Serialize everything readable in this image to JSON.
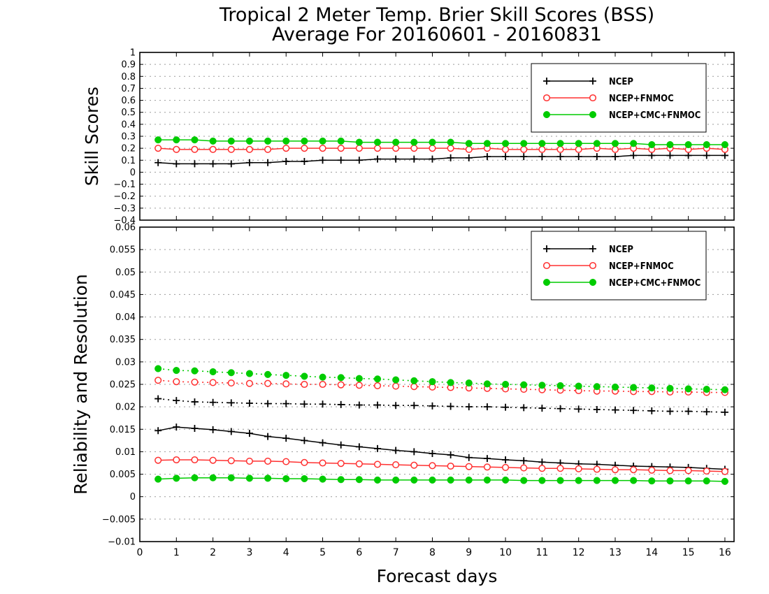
{
  "title_line1": "Tropical 2 Meter Temp. Brier Skill Scores (BSS)",
  "title_line2": "Average For 20160601 - 20160831",
  "xlabel": "Forecast days",
  "colors": {
    "NCEP": "#000000",
    "NCEP+FNMOC": "#ff3030",
    "NCEP+CMC+FNMOC": "#00cc00"
  },
  "chart_data": [
    {
      "type": "line",
      "panel": "top",
      "ylabel": "Skill Scores",
      "xlim": [
        0,
        16.25
      ],
      "ylim": [
        -0.4,
        1
      ],
      "x_ticks": [
        "0",
        "1",
        "2",
        "3",
        "4",
        "5",
        "6",
        "7",
        "8",
        "9",
        "10",
        "11",
        "12",
        "13",
        "14",
        "15",
        "16"
      ],
      "y_ticks": [
        "-0.4",
        "-0.3",
        "-0.2",
        "-0.1",
        "0",
        "0.1",
        "0.2",
        "0.3",
        "0.4",
        "0.5",
        "0.6",
        "0.7",
        "0.8",
        "0.9",
        "1"
      ],
      "grid": true,
      "legend": {
        "placement": "top-right",
        "entries": [
          "NCEP",
          "NCEP+FNMOC",
          "NCEP+CMC+FNMOC"
        ]
      },
      "x": [
        0.5,
        1,
        1.5,
        2,
        2.5,
        3,
        3.5,
        4,
        4.5,
        5,
        5.5,
        6,
        6.5,
        7,
        7.5,
        8,
        8.5,
        9,
        9.5,
        10,
        10.5,
        11,
        11.5,
        12,
        12.5,
        13,
        13.5,
        14,
        14.5,
        15,
        15.5,
        16
      ],
      "series": [
        {
          "name": "NCEP",
          "marker": "plus",
          "line": "solid",
          "values": [
            0.08,
            0.07,
            0.07,
            0.07,
            0.07,
            0.08,
            0.08,
            0.09,
            0.09,
            0.1,
            0.1,
            0.1,
            0.11,
            0.11,
            0.11,
            0.11,
            0.12,
            0.12,
            0.13,
            0.13,
            0.13,
            0.13,
            0.13,
            0.13,
            0.13,
            0.13,
            0.14,
            0.14,
            0.14,
            0.14,
            0.14,
            0.14
          ]
        },
        {
          "name": "NCEP+FNMOC",
          "marker": "open-circle",
          "line": "solid",
          "values": [
            0.2,
            0.19,
            0.19,
            0.19,
            0.19,
            0.19,
            0.19,
            0.2,
            0.2,
            0.2,
            0.2,
            0.2,
            0.2,
            0.2,
            0.2,
            0.2,
            0.2,
            0.19,
            0.2,
            0.19,
            0.19,
            0.19,
            0.19,
            0.19,
            0.2,
            0.19,
            0.2,
            0.19,
            0.2,
            0.19,
            0.2,
            0.19
          ]
        },
        {
          "name": "NCEP+CMC+FNMOC",
          "marker": "filled-circle",
          "line": "solid",
          "values": [
            0.27,
            0.27,
            0.27,
            0.26,
            0.26,
            0.26,
            0.26,
            0.26,
            0.26,
            0.26,
            0.26,
            0.25,
            0.25,
            0.25,
            0.25,
            0.25,
            0.25,
            0.24,
            0.24,
            0.24,
            0.24,
            0.24,
            0.24,
            0.24,
            0.24,
            0.24,
            0.24,
            0.23,
            0.23,
            0.23,
            0.23,
            0.23
          ]
        }
      ]
    },
    {
      "type": "line",
      "panel": "bottom",
      "ylabel": "Reliability and Resolution",
      "xlim": [
        0,
        16.25
      ],
      "ylim": [
        -0.01,
        0.06
      ],
      "x_ticks": [
        "0",
        "1",
        "2",
        "3",
        "4",
        "5",
        "6",
        "7",
        "8",
        "9",
        "10",
        "11",
        "12",
        "13",
        "14",
        "15",
        "16"
      ],
      "y_ticks": [
        "-0.01",
        "-0.005",
        "0",
        "0.005",
        "0.01",
        "0.015",
        "0.02",
        "0.025",
        "0.03",
        "0.035",
        "0.04",
        "0.045",
        "0.05",
        "0.055",
        "0.06"
      ],
      "grid": true,
      "legend": {
        "placement": "top-right",
        "entries": [
          "NCEP",
          "NCEP+FNMOC",
          "NCEP+CMC+FNMOC"
        ]
      },
      "x": [
        0.5,
        1,
        1.5,
        2,
        2.5,
        3,
        3.5,
        4,
        4.5,
        5,
        5.5,
        6,
        6.5,
        7,
        7.5,
        8,
        8.5,
        9,
        9.5,
        10,
        10.5,
        11,
        11.5,
        12,
        12.5,
        13,
        13.5,
        14,
        14.5,
        15,
        15.5,
        16
      ],
      "series": [
        {
          "name": "NCEP",
          "marker": "plus",
          "line": "solid",
          "values": [
            0.0147,
            0.0155,
            0.0152,
            0.0149,
            0.0145,
            0.0141,
            0.0134,
            0.013,
            0.0125,
            0.012,
            0.0115,
            0.0111,
            0.0107,
            0.0103,
            0.01,
            0.0096,
            0.0093,
            0.0087,
            0.0085,
            0.0082,
            0.008,
            0.0077,
            0.0075,
            0.0073,
            0.0072,
            0.007,
            0.0068,
            0.0067,
            0.0066,
            0.0065,
            0.0063,
            0.0061
          ]
        },
        {
          "name": "NCEP+FNMOC",
          "marker": "open-circle",
          "line": "solid",
          "values": [
            0.0081,
            0.0082,
            0.0082,
            0.0081,
            0.008,
            0.0079,
            0.0079,
            0.0078,
            0.0076,
            0.0075,
            0.0074,
            0.0073,
            0.0072,
            0.0071,
            0.007,
            0.0069,
            0.0068,
            0.0067,
            0.0066,
            0.0065,
            0.0064,
            0.0063,
            0.0063,
            0.0062,
            0.0061,
            0.006,
            0.006,
            0.0059,
            0.0058,
            0.0058,
            0.0057,
            0.0056
          ]
        },
        {
          "name": "NCEP+CMC+FNMOC",
          "marker": "filled-circle",
          "line": "solid",
          "values": [
            0.0039,
            0.0041,
            0.0042,
            0.0042,
            0.0042,
            0.0041,
            0.0041,
            0.004,
            0.004,
            0.0039,
            0.0038,
            0.0038,
            0.0037,
            0.0037,
            0.0037,
            0.0037,
            0.0037,
            0.0037,
            0.0037,
            0.0037,
            0.0036,
            0.0036,
            0.0036,
            0.0036,
            0.0036,
            0.0036,
            0.0036,
            0.0035,
            0.0035,
            0.0035,
            0.0035,
            0.0034
          ]
        },
        {
          "name": "NCEP",
          "marker": "plus",
          "line": "dotted",
          "values": [
            0.0218,
            0.0214,
            0.0211,
            0.021,
            0.0209,
            0.0208,
            0.0207,
            0.0207,
            0.0206,
            0.0206,
            0.0205,
            0.0204,
            0.0204,
            0.0203,
            0.0203,
            0.0202,
            0.0201,
            0.02,
            0.02,
            0.0199,
            0.0198,
            0.0197,
            0.0196,
            0.0195,
            0.0194,
            0.0193,
            0.0192,
            0.0191,
            0.019,
            0.019,
            0.0189,
            0.0188
          ]
        },
        {
          "name": "NCEP+FNMOC",
          "marker": "open-circle",
          "line": "dotted",
          "values": [
            0.0259,
            0.0256,
            0.0255,
            0.0254,
            0.0253,
            0.0252,
            0.0252,
            0.0251,
            0.025,
            0.025,
            0.0249,
            0.0248,
            0.0247,
            0.0246,
            0.0245,
            0.0244,
            0.0243,
            0.0242,
            0.0241,
            0.024,
            0.0239,
            0.0238,
            0.0237,
            0.0236,
            0.0235,
            0.0235,
            0.0234,
            0.0234,
            0.0233,
            0.0233,
            0.0232,
            0.0232
          ]
        },
        {
          "name": "NCEP+CMC+FNMOC",
          "marker": "filled-circle",
          "line": "dotted",
          "values": [
            0.0285,
            0.0281,
            0.028,
            0.0278,
            0.0276,
            0.0274,
            0.0272,
            0.027,
            0.0268,
            0.0266,
            0.0265,
            0.0263,
            0.0262,
            0.026,
            0.0258,
            0.0256,
            0.0254,
            0.0253,
            0.0251,
            0.025,
            0.0249,
            0.0248,
            0.0247,
            0.0246,
            0.0245,
            0.0244,
            0.0243,
            0.0242,
            0.0241,
            0.024,
            0.0239,
            0.0238
          ]
        }
      ]
    }
  ]
}
